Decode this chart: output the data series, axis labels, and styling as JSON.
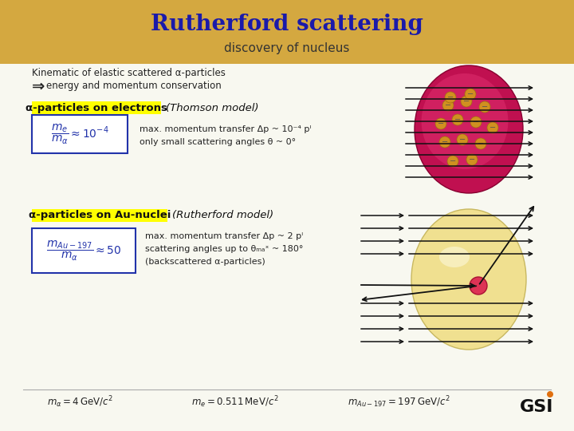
{
  "title": "Rutherford scattering",
  "subtitle": "discovery of nucleus",
  "title_color": "#1a1aaa",
  "subtitle_color": "#333333",
  "header_bg_color": "#d4a840",
  "body_bg_color": "#f8f8f0",
  "kinematic_line1": "Kinematic of elastic scattered α-particles",
  "kinematic_line2": "energy and momentum conservation",
  "section1_label": "α-particles on electrons",
  "section1_label_bg": "#ffff00",
  "section1_model": "(Thomson model)",
  "section2_label": "α-particles on Au-nuclei",
  "section2_label_bg": "#ffff00",
  "section2_model": "(Rutherford model)",
  "desc1_line1": "max. momentum transfer Δp ~ 10⁻⁴ pᴵ",
  "desc1_line2": "only small scattering angles θ ~ 0°",
  "desc2_line1": "max. momentum transfer Δp ~ 2 pᴵ",
  "desc2_line2": "scattering angles up to θₘₐˣ ~ 180°",
  "desc2_line3": "(backscattered α-particles)",
  "formula_box_color": "#2233aa",
  "formula_text_color": "#2233aa",
  "footer_line_color": "#aaaaaa",
  "arrow_color": "#111111",
  "text_color": "#222222"
}
